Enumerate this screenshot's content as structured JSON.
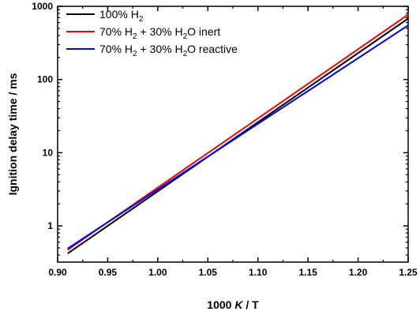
{
  "chart_data": {
    "type": "line",
    "title": "",
    "xlabel": {
      "prefix": "1000 ",
      "italic": "K",
      "suffix": " / T"
    },
    "ylabel": "Ignition delay time / ms",
    "xlim": [
      0.9,
      1.25
    ],
    "ylim": [
      0.32,
      1000
    ],
    "yscale": "log",
    "x_ticks": [
      "0.90",
      "0.95",
      "1.00",
      "1.05",
      "1.10",
      "1.15",
      "1.20",
      "1.25"
    ],
    "y_ticks": [
      "1",
      "10",
      "100",
      "1000"
    ],
    "legend_position": "top-left",
    "series": [
      {
        "name": "100% H2",
        "legend_parts": [
          [
            "100% H",
            "n"
          ],
          [
            "2",
            "sub"
          ]
        ],
        "color": "#000000",
        "x": [
          0.91,
          1.25
        ],
        "y": [
          0.42,
          680
        ]
      },
      {
        "name": "70% H2 + 30% H2O inert",
        "legend_parts": [
          [
            "70% H",
            "n"
          ],
          [
            "2",
            "sub"
          ],
          [
            " + 30% H",
            "n"
          ],
          [
            "2",
            "sub"
          ],
          [
            "O inert",
            "n"
          ]
        ],
        "color": "#ff0000",
        "x": [
          0.91,
          1.25
        ],
        "y": [
          0.47,
          770
        ]
      },
      {
        "name": "70% H2 + 30% H2O reactive",
        "legend_parts": [
          [
            "70% H",
            "n"
          ],
          [
            "2",
            "sub"
          ],
          [
            " + 30% H",
            "n"
          ],
          [
            "2",
            "sub"
          ],
          [
            "O reactive",
            "n"
          ]
        ],
        "color": "#0000ff",
        "x": [
          0.91,
          1.25
        ],
        "y": [
          0.49,
          550
        ]
      }
    ]
  }
}
